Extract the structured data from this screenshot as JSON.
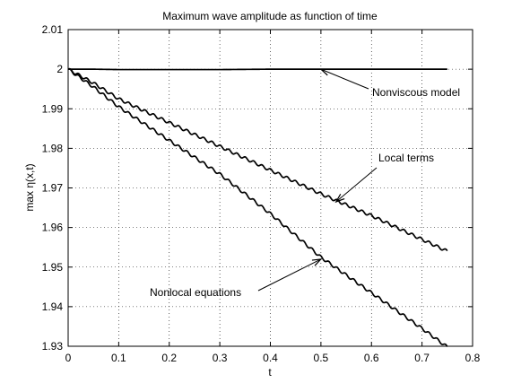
{
  "chart_data": {
    "type": "line",
    "title": "Maximum wave amplitude as function of time",
    "xlabel": "t",
    "ylabel": "max η(x,t)",
    "xlim": [
      0,
      0.8
    ],
    "ylim": [
      1.93,
      2.01
    ],
    "xticks": [
      "0",
      "0.1",
      "0.2",
      "0.3",
      "0.4",
      "0.5",
      "0.6",
      "0.7",
      "0.8"
    ],
    "yticks": [
      "1.93",
      "1.94",
      "1.95",
      "1.96",
      "1.97",
      "1.98",
      "1.99",
      "2",
      "2.01"
    ],
    "grid": true,
    "series": [
      {
        "x": [
          0,
          0.05,
          0.1,
          0.2,
          0.3,
          0.4,
          0.5,
          0.6,
          0.7,
          0.75
        ],
        "y": [
          2.0,
          2.0,
          1.9999,
          1.9999,
          1.9999,
          2.0,
          2.0,
          2.0,
          2.0,
          2.0
        ]
      },
      {
        "x": [
          0,
          0.05,
          0.1,
          0.2,
          0.3,
          0.4,
          0.5,
          0.6,
          0.7,
          0.75
        ],
        "y": [
          2.0,
          1.9965,
          1.9925,
          1.9865,
          1.9805,
          1.9745,
          1.9685,
          1.963,
          1.957,
          1.954
        ]
      },
      {
        "x": [
          0,
          0.05,
          0.1,
          0.2,
          0.3,
          0.4,
          0.5,
          0.6,
          0.7,
          0.75
        ],
        "y": [
          2.0,
          1.9955,
          1.9905,
          1.982,
          1.9735,
          1.9635,
          1.9525,
          1.9435,
          1.9345,
          1.9298
        ]
      }
    ],
    "annotations": [
      {
        "text": "Nonviscous model",
        "point": [
          0.5,
          2.0
        ]
      },
      {
        "text": "Local terms",
        "point": [
          0.53,
          1.9665
        ]
      },
      {
        "text": "Nonlocal equations",
        "point": [
          0.5,
          1.952
        ]
      }
    ]
  }
}
